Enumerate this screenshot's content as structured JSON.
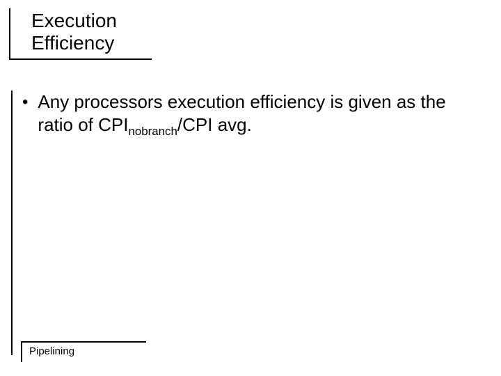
{
  "title": {
    "line1": "Execution",
    "line2": "Efficiency",
    "fontsize": 28,
    "color": "#000000"
  },
  "body": {
    "bullet_char": "•",
    "text_pre": "Any processors execution efficiency is given as the ratio of CPI",
    "text_sub": "nobranch",
    "text_post": "/CPI avg.",
    "fontsize": 26,
    "color": "#000000"
  },
  "footer": {
    "label": "Pipelining",
    "fontsize": 15,
    "color": "#000000"
  },
  "layout": {
    "slide_width": 720,
    "slide_height": 540,
    "background_color": "#ffffff",
    "rule_color": "#000000",
    "rule_width": 2
  }
}
